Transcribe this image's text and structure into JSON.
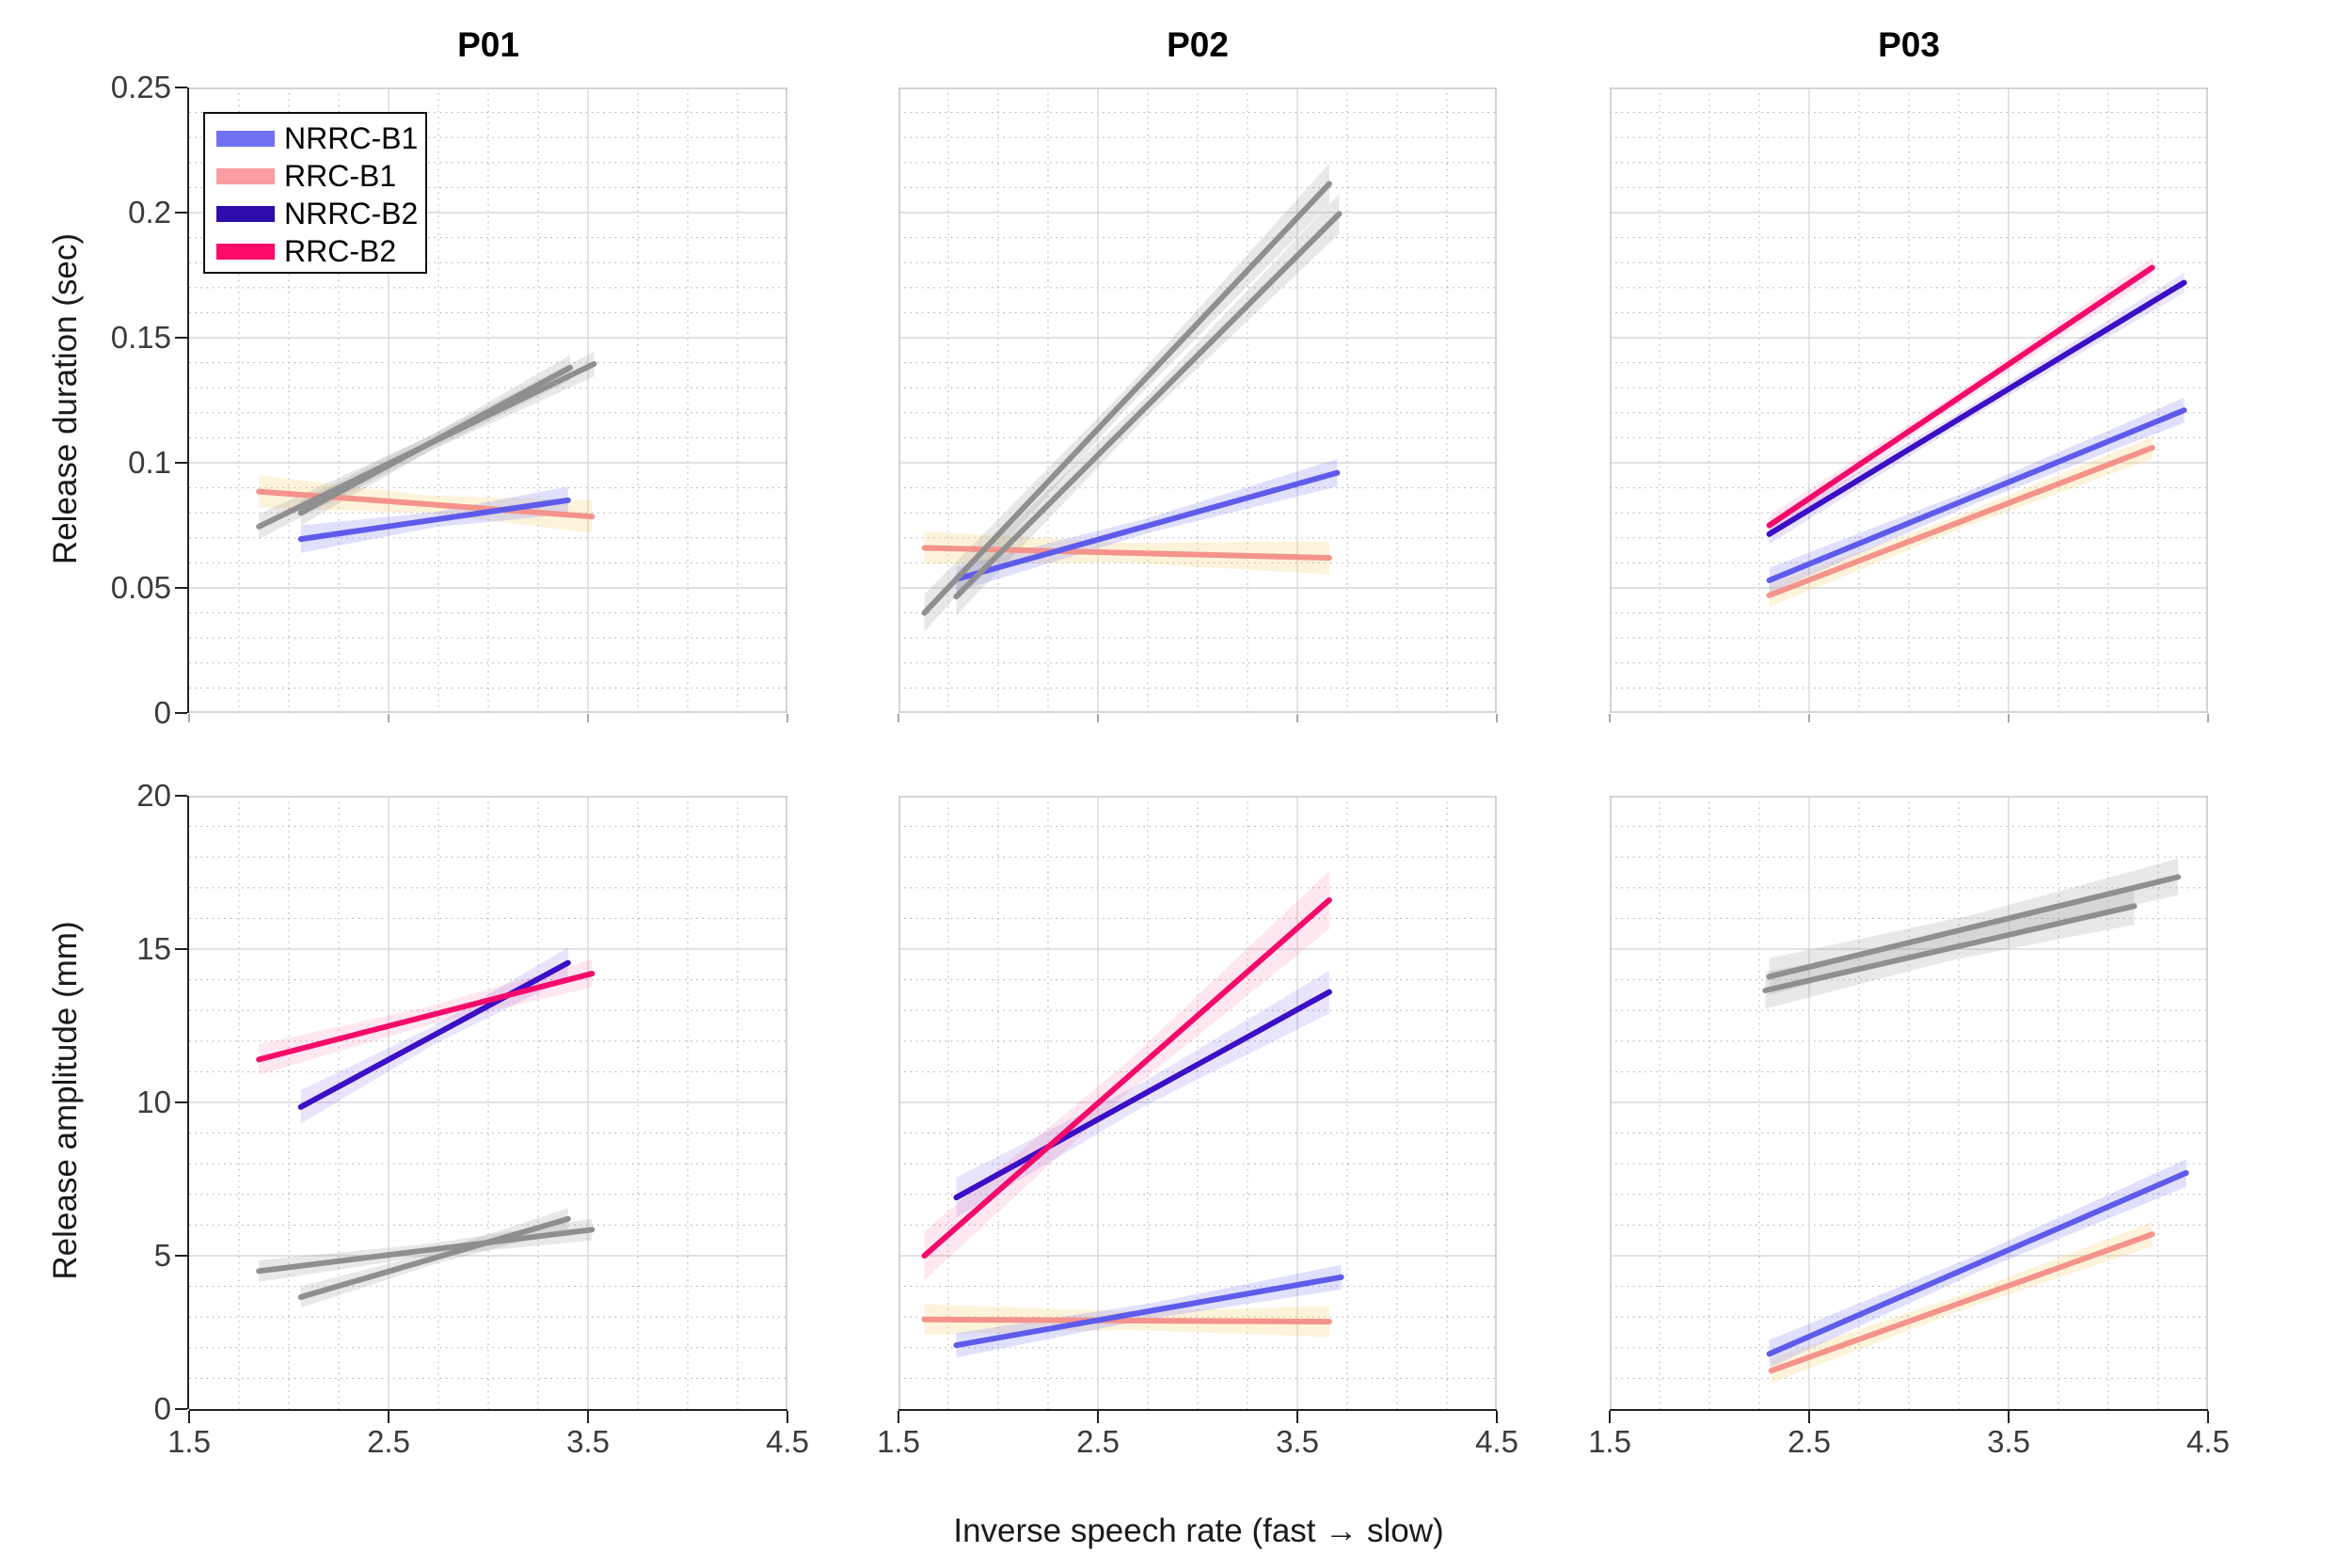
{
  "chart_data": {
    "type": "line",
    "xlabel": "Inverse speech rate (fast → slow)",
    "x_range": [
      1.5,
      4.5
    ],
    "x_ticks": [
      "1.5",
      "2.5",
      "3.5",
      "4.5"
    ],
    "x_tick_values": [
      1.5,
      2.5,
      3.5,
      4.5
    ],
    "x_minor_step": 0.25,
    "grid": "major solid + dotted minor",
    "legend_position": "top-left panel, inset box",
    "columns": [
      {
        "label": "P01"
      },
      {
        "label": "P02"
      },
      {
        "label": "P03"
      }
    ],
    "rows": [
      {
        "ylabel": "Release duration (sec)",
        "y_range": [
          0,
          0.25
        ],
        "y_ticks": [
          "0",
          "0.05",
          "0.1",
          "0.15",
          "0.2",
          "0.25"
        ],
        "y_tick_values": [
          0,
          0.05,
          0.1,
          0.15,
          0.2,
          0.25
        ],
        "y_minor_step": 0.01
      },
      {
        "ylabel": "Release amplitude (mm)",
        "y_range": [
          0,
          20
        ],
        "y_ticks": [
          "0",
          "5",
          "10",
          "15",
          "20"
        ],
        "y_tick_values": [
          0,
          5,
          10,
          15,
          20
        ],
        "y_minor_step": 1
      }
    ],
    "palette": {
      "blue": {
        "line": "#5E5BEB",
        "band": "rgba(112,112,245,0.22)"
      },
      "salmon": {
        "line": "#F4938B",
        "band": "rgba(247,206,107,0.25)"
      },
      "navy": {
        "line": "#3A0FC6",
        "band": "rgba(85,45,225,0.13)"
      },
      "crimson": {
        "line": "#F50A6C",
        "band": "rgba(247,70,140,0.13)"
      },
      "gray": {
        "line": "#8F8F8F",
        "band": "rgba(150,150,150,0.22)"
      }
    },
    "legend": [
      {
        "label": "NRRC-B1",
        "swatch": "#7172F3"
      },
      {
        "label": "RRC-B1",
        "swatch": "#FA9DA1"
      },
      {
        "label": "NRRC-B2",
        "swatch": "#2D0CAA"
      },
      {
        "label": "RRC-B2",
        "swatch": "#FB0A69"
      }
    ],
    "panels": [
      {
        "row": 0,
        "col": 0,
        "lines": [
          {
            "series": "RRC-B1",
            "color": "salmon",
            "x": [
              1.85,
              3.52
            ],
            "y": [
              0.0885,
              0.0785
            ],
            "hw": [
              0.0065,
              0.0035,
              0.0065
            ]
          },
          {
            "series": "NRRC-B1",
            "color": "blue",
            "x": [
              2.06,
              3.4
            ],
            "y": [
              0.0695,
              0.085
            ],
            "hw": [
              0.0055,
              0.003,
              0.0055
            ]
          },
          {
            "series": "NRRC-B2",
            "color": "gray",
            "x": [
              2.06,
              3.41
            ],
            "y": [
              0.08,
              0.138
            ],
            "hw": [
              0.005,
              0.003,
              0.005
            ]
          },
          {
            "series": "RRC-B2",
            "color": "gray",
            "x": [
              1.85,
              3.53
            ],
            "y": [
              0.0745,
              0.1395
            ],
            "hw": [
              0.005,
              0.003,
              0.005
            ]
          }
        ]
      },
      {
        "row": 0,
        "col": 1,
        "lines": [
          {
            "series": "RRC-B1",
            "color": "salmon",
            "x": [
              1.63,
              3.66
            ],
            "y": [
              0.066,
              0.062
            ],
            "hw": [
              0.0065,
              0.004,
              0.0065
            ]
          },
          {
            "series": "NRRC-B1",
            "color": "blue",
            "x": [
              1.79,
              3.7
            ],
            "y": [
              0.0535,
              0.096
            ],
            "hw": [
              0.005,
              0.003,
              0.0055
            ]
          },
          {
            "series": "NRRC-B2",
            "color": "gray",
            "x": [
              1.79,
              3.71
            ],
            "y": [
              0.0465,
              0.1995
            ],
            "hw": [
              0.0075,
              0.004,
              0.008
            ]
          },
          {
            "series": "RRC-B2",
            "color": "gray",
            "x": [
              1.63,
              3.66
            ],
            "y": [
              0.04,
              0.2115
            ],
            "hw": [
              0.0075,
              0.004,
              0.008
            ]
          }
        ]
      },
      {
        "row": 0,
        "col": 2,
        "lines": [
          {
            "series": "RRC-B1",
            "color": "salmon",
            "x": [
              2.3,
              4.22
            ],
            "y": [
              0.047,
              0.106
            ],
            "hw": [
              0.0045,
              0.0028,
              0.0045
            ]
          },
          {
            "series": "NRRC-B1",
            "color": "blue",
            "x": [
              2.3,
              4.38
            ],
            "y": [
              0.053,
              0.121
            ],
            "hw": [
              0.005,
              0.003,
              0.005
            ]
          },
          {
            "series": "NRRC-B2",
            "color": "navy",
            "x": [
              2.3,
              4.38
            ],
            "y": [
              0.0715,
              0.172
            ],
            "hw": [
              0.004,
              0.0025,
              0.004
            ]
          },
          {
            "series": "RRC-B2",
            "color": "crimson",
            "x": [
              2.3,
              4.22
            ],
            "y": [
              0.075,
              0.178
            ],
            "hw": [
              0.004,
              0.0025,
              0.004
            ]
          }
        ]
      },
      {
        "row": 1,
        "col": 0,
        "lines": [
          {
            "series": "RRC-B1",
            "color": "gray",
            "x": [
              1.85,
              3.52
            ],
            "y": [
              4.5,
              5.85
            ],
            "hw": [
              0.35,
              0.2,
              0.35
            ]
          },
          {
            "series": "NRRC-B1",
            "color": "gray",
            "x": [
              2.06,
              3.4
            ],
            "y": [
              3.65,
              6.2
            ],
            "hw": [
              0.35,
              0.2,
              0.35
            ]
          },
          {
            "series": "NRRC-B2",
            "color": "navy",
            "x": [
              2.06,
              3.4
            ],
            "y": [
              9.85,
              14.55
            ],
            "hw": [
              0.55,
              0.3,
              0.5
            ]
          },
          {
            "series": "RRC-B2",
            "color": "crimson",
            "x": [
              1.85,
              3.52
            ],
            "y": [
              11.4,
              14.2
            ],
            "hw": [
              0.5,
              0.3,
              0.45
            ]
          }
        ]
      },
      {
        "row": 1,
        "col": 1,
        "lines": [
          {
            "series": "RRC-B1",
            "color": "salmon",
            "x": [
              1.63,
              3.66
            ],
            "y": [
              2.92,
              2.85
            ],
            "hw": [
              0.5,
              0.3,
              0.5
            ]
          },
          {
            "series": "NRRC-B1",
            "color": "blue",
            "x": [
              1.79,
              3.72
            ],
            "y": [
              2.08,
              4.3
            ],
            "hw": [
              0.4,
              0.25,
              0.4
            ]
          },
          {
            "series": "NRRC-B2",
            "color": "navy",
            "x": [
              1.79,
              3.66
            ],
            "y": [
              6.9,
              13.6
            ],
            "hw": [
              0.65,
              0.4,
              0.7
            ]
          },
          {
            "series": "RRC-B2",
            "color": "crimson",
            "x": [
              1.63,
              3.66
            ],
            "y": [
              5.0,
              16.6
            ],
            "hw": [
              0.8,
              0.5,
              0.95
            ]
          }
        ]
      },
      {
        "row": 1,
        "col": 2,
        "lines": [
          {
            "series": "RRC-B1",
            "color": "salmon",
            "x": [
              2.31,
              4.22
            ],
            "y": [
              1.25,
              5.7
            ],
            "hw": [
              0.4,
              0.25,
              0.4
            ]
          },
          {
            "series": "NRRC-B1",
            "color": "blue",
            "x": [
              2.3,
              4.39
            ],
            "y": [
              1.8,
              7.7
            ],
            "hw": [
              0.45,
              0.28,
              0.45
            ]
          },
          {
            "series": "NRRC-B2",
            "color": "gray",
            "x": [
              2.3,
              4.35
            ],
            "y": [
              14.1,
              17.35
            ],
            "hw": [
              0.6,
              0.4,
              0.6
            ]
          },
          {
            "series": "RRC-B2",
            "color": "gray",
            "x": [
              2.28,
              4.13
            ],
            "y": [
              13.65,
              16.4
            ],
            "hw": [
              0.6,
              0.4,
              0.6
            ]
          }
        ]
      }
    ]
  }
}
